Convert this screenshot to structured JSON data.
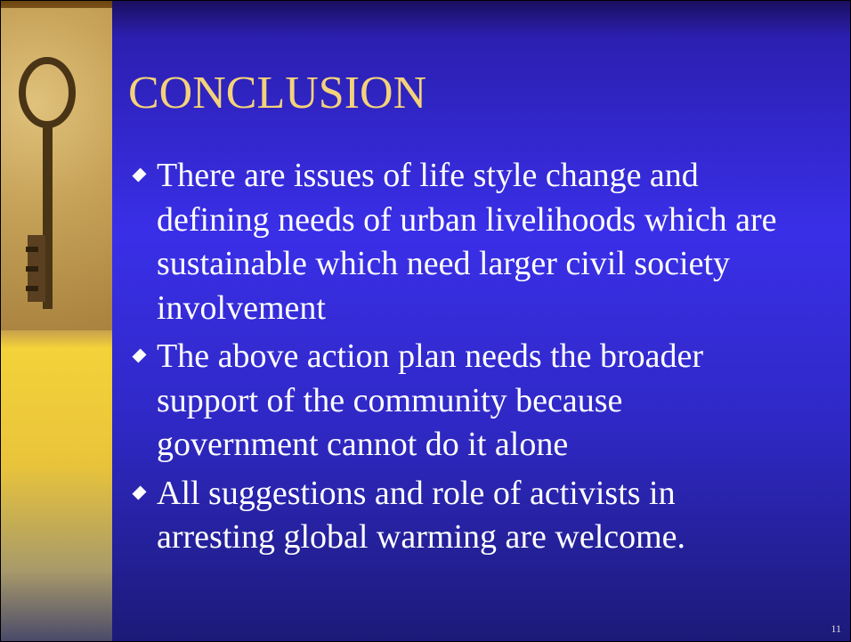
{
  "slide": {
    "title": "CONCLUSION",
    "bullets": [
      "There are issues of life style change and defining needs of urban livelihoods which are sustainable which need larger civil society involvement",
      "The above action plan needs the broader support of the community because government cannot do it alone",
      "All suggestions and role of activists in arresting global warming are welcome."
    ],
    "page_number": "11"
  }
}
